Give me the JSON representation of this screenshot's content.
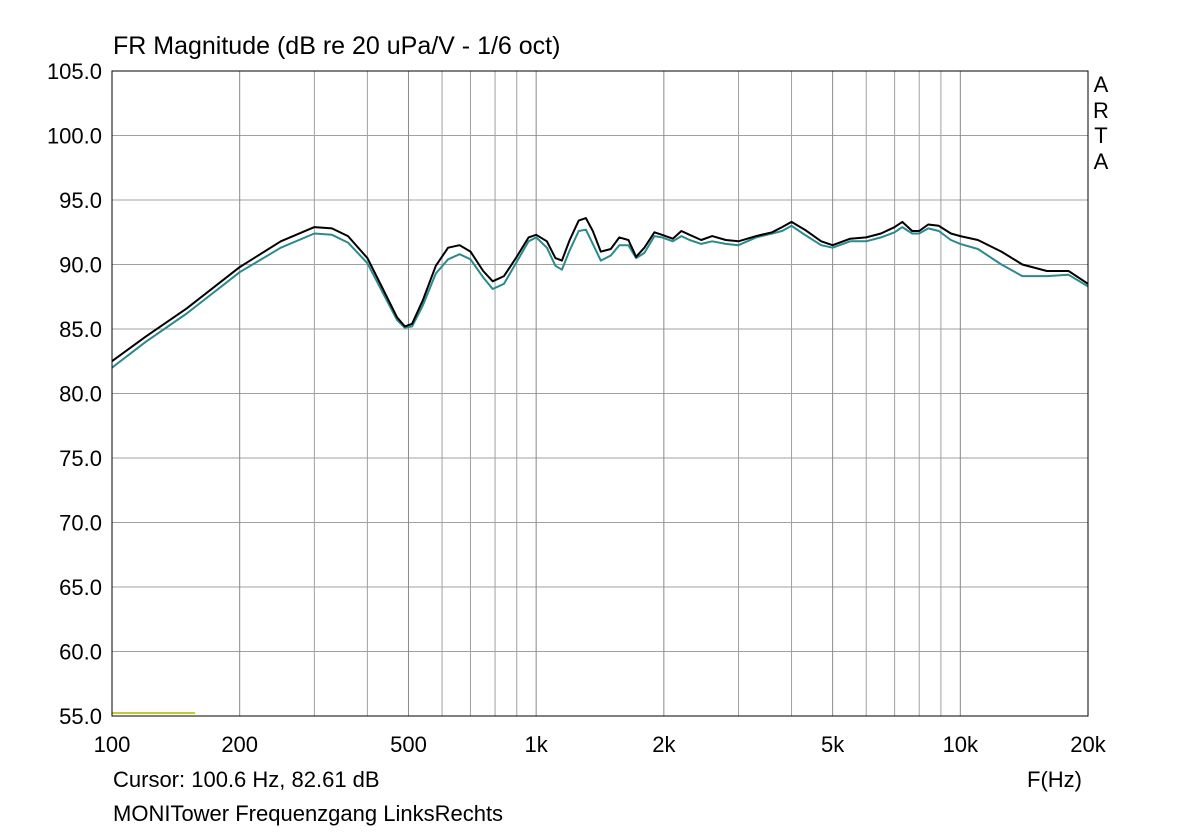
{
  "chart_data": {
    "type": "line",
    "title": "FR Magnitude (dB re 20 uPa/V - 1/6 oct)",
    "xlabel": "F(Hz)",
    "ylabel": "",
    "xscale": "log",
    "xlim": [
      100,
      20000
    ],
    "ylim": [
      55,
      105
    ],
    "grid": true,
    "legend": "none",
    "y_ticks": [
      "105.0",
      "100.0",
      "95.0",
      "90.0",
      "85.0",
      "80.0",
      "75.0",
      "70.0",
      "65.0",
      "60.0",
      "55.0"
    ],
    "y_tick_values": [
      105,
      100,
      95,
      90,
      85,
      80,
      75,
      70,
      65,
      60,
      55
    ],
    "x_ticks": [
      "100",
      "200",
      "500",
      "1k",
      "2k",
      "5k",
      "10k",
      "20k"
    ],
    "x_tick_values": [
      100,
      200,
      500,
      1000,
      2000,
      5000,
      10000,
      20000
    ],
    "series": [
      {
        "color": "#000000",
        "x": [
          100,
          120,
          150,
          200,
          250,
          300,
          330,
          360,
          400,
          440,
          470,
          490,
          510,
          540,
          580,
          620,
          660,
          700,
          750,
          790,
          840,
          900,
          960,
          1000,
          1060,
          1110,
          1150,
          1200,
          1260,
          1310,
          1360,
          1420,
          1500,
          1570,
          1650,
          1720,
          1800,
          1900,
          1980,
          2100,
          2200,
          2300,
          2450,
          2600,
          2800,
          3000,
          3300,
          3600,
          3800,
          4000,
          4300,
          4700,
          5000,
          5500,
          6000,
          6500,
          7000,
          7300,
          7700,
          8000,
          8400,
          8900,
          9500,
          10000,
          11000,
          12500,
          14000,
          16000,
          18000,
          20000
        ],
        "values": [
          82.5,
          84.4,
          86.6,
          89.8,
          91.8,
          92.9,
          92.8,
          92.2,
          90.5,
          87.8,
          85.9,
          85.2,
          85.4,
          87.2,
          89.9,
          91.3,
          91.5,
          91.0,
          89.5,
          88.7,
          89.1,
          90.6,
          92.1,
          92.3,
          91.8,
          90.5,
          90.3,
          91.9,
          93.4,
          93.6,
          92.6,
          91.0,
          91.2,
          92.1,
          91.9,
          90.6,
          91.3,
          92.5,
          92.3,
          92.0,
          92.6,
          92.3,
          91.9,
          92.2,
          91.9,
          91.8,
          92.2,
          92.5,
          92.9,
          93.3,
          92.7,
          91.8,
          91.5,
          92.0,
          92.1,
          92.4,
          92.9,
          93.3,
          92.6,
          92.6,
          93.1,
          93.0,
          92.4,
          92.2,
          91.9,
          91.0,
          90.0,
          89.5,
          89.5,
          88.5
        ]
      },
      {
        "color": "#2a8a8c",
        "x": [
          100,
          120,
          150,
          200,
          250,
          300,
          330,
          360,
          400,
          440,
          470,
          490,
          510,
          540,
          580,
          620,
          660,
          700,
          750,
          790,
          840,
          900,
          960,
          1000,
          1060,
          1110,
          1150,
          1200,
          1260,
          1310,
          1360,
          1420,
          1500,
          1570,
          1650,
          1720,
          1800,
          1900,
          1980,
          2100,
          2200,
          2300,
          2450,
          2600,
          2800,
          3000,
          3300,
          3600,
          3800,
          4000,
          4300,
          4700,
          5000,
          5500,
          6000,
          6500,
          7000,
          7300,
          7700,
          8000,
          8400,
          8900,
          9500,
          10000,
          11000,
          12500,
          14000,
          16000,
          18000,
          20000
        ],
        "values": [
          82.0,
          84.0,
          86.2,
          89.4,
          91.3,
          92.4,
          92.3,
          91.7,
          90.1,
          87.5,
          85.7,
          85.1,
          85.2,
          86.8,
          89.3,
          90.4,
          90.8,
          90.4,
          89.0,
          88.1,
          88.5,
          90.2,
          91.8,
          92.1,
          91.3,
          89.9,
          89.6,
          91.1,
          92.6,
          92.7,
          91.6,
          90.3,
          90.7,
          91.5,
          91.5,
          90.5,
          90.9,
          92.2,
          92.1,
          91.8,
          92.2,
          91.9,
          91.6,
          91.8,
          91.6,
          91.5,
          92.1,
          92.4,
          92.6,
          93.0,
          92.3,
          91.5,
          91.3,
          91.8,
          91.8,
          92.1,
          92.5,
          92.9,
          92.4,
          92.4,
          92.8,
          92.6,
          91.9,
          91.6,
          91.2,
          90.0,
          89.1,
          89.1,
          89.2,
          88.3
        ]
      }
    ]
  },
  "cursor_readout": "Cursor: 100.6 Hz, 82.61 dB",
  "footer_label": "MONITower Frequenzgang LinksRechts",
  "brand_letters": [
    "A",
    "R",
    "T",
    "A"
  ],
  "colors": {
    "grid": "#a0a0a0",
    "frame": "#000000",
    "cursor_marker": "#c8c832"
  }
}
